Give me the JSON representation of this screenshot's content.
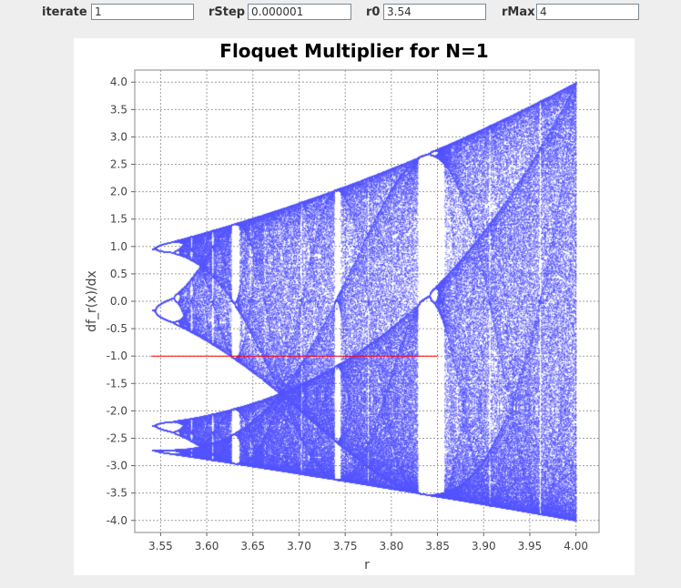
{
  "controls": {
    "iterate_label": "iterate",
    "iterate_value": "1",
    "rstep_label": "rStep",
    "rstep_value": "0.000001",
    "r0_label": "r0",
    "r0_value": "3.54",
    "rmax_label": "rMax",
    "rmax_value": "4"
  },
  "chart_data": {
    "type": "scatter",
    "title": "Floquet Multiplier for N=1",
    "xlabel": "r",
    "ylabel": "df_r(x)/dx",
    "xlim": [
      3.522,
      4.025
    ],
    "ylim": [
      -4.22,
      4.22
    ],
    "x_ticks": [
      3.55,
      3.6,
      3.65,
      3.7,
      3.75,
      3.8,
      3.85,
      3.9,
      3.95,
      4.0
    ],
    "x_tick_labels": [
      "3.55",
      "3.60",
      "3.65",
      "3.70",
      "3.75",
      "3.80",
      "3.85",
      "3.90",
      "3.95",
      "4.00"
    ],
    "y_ticks": [
      4.0,
      3.5,
      3.0,
      2.5,
      2.0,
      1.5,
      1.0,
      0.5,
      0.0,
      -0.5,
      -1.0,
      -1.5,
      -2.0,
      -2.5,
      -3.0,
      -3.5,
      -4.0
    ],
    "y_tick_labels": [
      "4.0",
      "3.5",
      "3.0",
      "2.5",
      "2.0",
      "1.5",
      "1.0",
      "0.5",
      "0.0",
      "-0.5",
      "-1.0",
      "-1.5",
      "-2.0",
      "-2.5",
      "-3.0",
      "-3.5",
      "-4.0"
    ],
    "grid": true,
    "series": [
      {
        "name": "",
        "color": "#5555ff",
        "description_r_range": [
          3.54,
          4.0
        ]
      }
    ],
    "reference_line": {
      "y": -1.0,
      "x_range": [
        3.54,
        3.85
      ],
      "color": "#ff0000"
    }
  }
}
